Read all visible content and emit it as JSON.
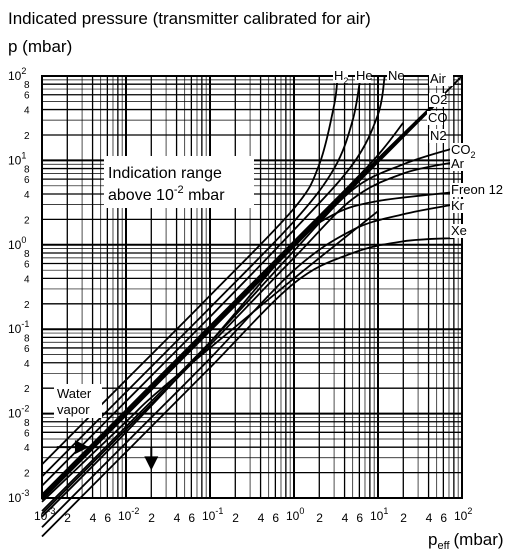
{
  "chart_data": {
    "type": "line",
    "title": "Indicated pressure (transmitter calibrated for air)",
    "ylabel": "p (mbar)",
    "xlabel": "p_eff (mbar)",
    "xlabel_main": "p",
    "xlabel_sub": "eff",
    "xlabel_unit": "(mbar)",
    "xscale": "log",
    "yscale": "log",
    "xlim": [
      0.001,
      100
    ],
    "ylim": [
      0.001,
      100
    ],
    "grid": true,
    "x_ticks": [
      {
        "base": "10",
        "exp": "-3"
      },
      {
        "base": "10",
        "exp": "-2"
      },
      {
        "base": "10",
        "exp": "-1"
      },
      {
        "base": "10",
        "exp": "0"
      },
      {
        "base": "10",
        "exp": "1"
      },
      {
        "base": "10",
        "exp": "2"
      }
    ],
    "y_ticks": [
      {
        "base": "10",
        "exp": "-3"
      },
      {
        "base": "10",
        "exp": "-2"
      },
      {
        "base": "10",
        "exp": "-1"
      },
      {
        "base": "10",
        "exp": "0"
      },
      {
        "base": "10",
        "exp": "1"
      },
      {
        "base": "10",
        "exp": "2"
      }
    ],
    "x_minor_labels": [
      "2",
      "4",
      "6"
    ],
    "y_minor_labels": [
      "2",
      "4",
      "6",
      "8"
    ],
    "annotation": {
      "line1": "Indication range",
      "line2_prefix": "above 10",
      "line2_exp": "-2",
      "line2_suffix": " mbar"
    },
    "water_vapor": {
      "line1": "Water",
      "line2": "vapor"
    },
    "series": [
      {
        "name": "H2",
        "label_main": "H",
        "label_sub": "2",
        "points": [
          [
            0.001,
            0.0025
          ],
          [
            0.01,
            0.025
          ],
          [
            0.1,
            0.25
          ],
          [
            1,
            2.7
          ],
          [
            2,
            9
          ],
          [
            3,
            45
          ],
          [
            3.3,
            100
          ]
        ]
      },
      {
        "name": "He",
        "label_main": "He",
        "points": [
          [
            0.001,
            0.0018
          ],
          [
            0.01,
            0.018
          ],
          [
            0.1,
            0.18
          ],
          [
            1,
            1.9
          ],
          [
            3,
            8
          ],
          [
            5,
            30
          ],
          [
            6.2,
            100
          ]
        ]
      },
      {
        "name": "Ne",
        "label_main": "Ne",
        "points": [
          [
            0.001,
            0.0014
          ],
          [
            0.01,
            0.014
          ],
          [
            0.1,
            0.14
          ],
          [
            1,
            1.5
          ],
          [
            5,
            9
          ],
          [
            10,
            35
          ],
          [
            12,
            100
          ]
        ]
      },
      {
        "name": "Air",
        "label_main": "Air",
        "points": [
          [
            0.001,
            0.001
          ],
          [
            0.01,
            0.01
          ],
          [
            0.1,
            0.1
          ],
          [
            1,
            1
          ],
          [
            10,
            10
          ],
          [
            70,
            70
          ],
          [
            100,
            100
          ]
        ]
      },
      {
        "name": "O2",
        "label_main": "O2",
        "points": [
          [
            0.001,
            0.00095
          ],
          [
            0.01,
            0.0095
          ],
          [
            0.1,
            0.095
          ],
          [
            1,
            0.95
          ],
          [
            10,
            9.5
          ],
          [
            60,
            57
          ]
        ]
      },
      {
        "name": "CO",
        "label_main": "CO",
        "points": [
          [
            0.001,
            0.0011
          ],
          [
            0.01,
            0.011
          ],
          [
            0.1,
            0.11
          ],
          [
            1,
            1.1
          ],
          [
            8,
            9
          ],
          [
            20,
            28
          ]
        ]
      },
      {
        "name": "N2",
        "label_main": "N2",
        "points": [
          [
            0.001,
            0.00105
          ],
          [
            0.01,
            0.0105
          ],
          [
            0.1,
            0.105
          ],
          [
            1,
            1.05
          ],
          [
            10,
            10.5
          ],
          [
            60,
            60
          ]
        ]
      },
      {
        "name": "CO2",
        "label_main": "CO",
        "label_sub": "2",
        "points": [
          [
            0.001,
            0.0007
          ],
          [
            0.01,
            0.007
          ],
          [
            0.1,
            0.07
          ],
          [
            1,
            0.85
          ],
          [
            5,
            4.5
          ],
          [
            20,
            9
          ],
          [
            80,
            14
          ]
        ]
      },
      {
        "name": "Ar",
        "label_main": "Ar",
        "points": [
          [
            0.001,
            0.00065
          ],
          [
            0.01,
            0.0065
          ],
          [
            0.1,
            0.065
          ],
          [
            1,
            0.7
          ],
          [
            5,
            3.5
          ],
          [
            20,
            7
          ],
          [
            80,
            9.5
          ]
        ]
      },
      {
        "name": "Freon 12",
        "label_main": "Freon 12",
        "points": [
          [
            0.001,
            0.0006
          ],
          [
            0.01,
            0.006
          ],
          [
            0.1,
            0.07
          ],
          [
            1,
            1.0
          ],
          [
            3,
            2.3
          ],
          [
            10,
            3.3
          ],
          [
            80,
            4.2
          ]
        ]
      },
      {
        "name": "Kr",
        "label_main": "Kr",
        "points": [
          [
            0.001,
            0.00045
          ],
          [
            0.01,
            0.0045
          ],
          [
            0.1,
            0.045
          ],
          [
            1,
            0.5
          ],
          [
            5,
            1.5
          ],
          [
            20,
            2.3
          ],
          [
            80,
            3.0
          ]
        ]
      },
      {
        "name": "Xe",
        "label_main": "Xe",
        "points": [
          [
            0.001,
            0.00035
          ],
          [
            0.01,
            0.0035
          ],
          [
            0.1,
            0.035
          ],
          [
            1,
            0.35
          ],
          [
            5,
            0.8
          ],
          [
            20,
            1.1
          ],
          [
            80,
            1.2
          ]
        ]
      },
      {
        "name": "Water vapor",
        "label_main": "",
        "points": [
          [
            0.001,
            0.0009
          ],
          [
            0.01,
            0.008
          ],
          [
            0.02,
            0.0155
          ],
          [
            0.1,
            0.06
          ],
          [
            1,
            0.4
          ],
          [
            10,
            2.5
          ]
        ]
      }
    ],
    "arrows": [
      {
        "direction": "right",
        "y": 0.004,
        "from_x": 0.0015,
        "to_x": 0.005
      },
      {
        "direction": "down",
        "x": 0.02,
        "from_y": 0.004,
        "to_y": 0.0025
      }
    ]
  }
}
